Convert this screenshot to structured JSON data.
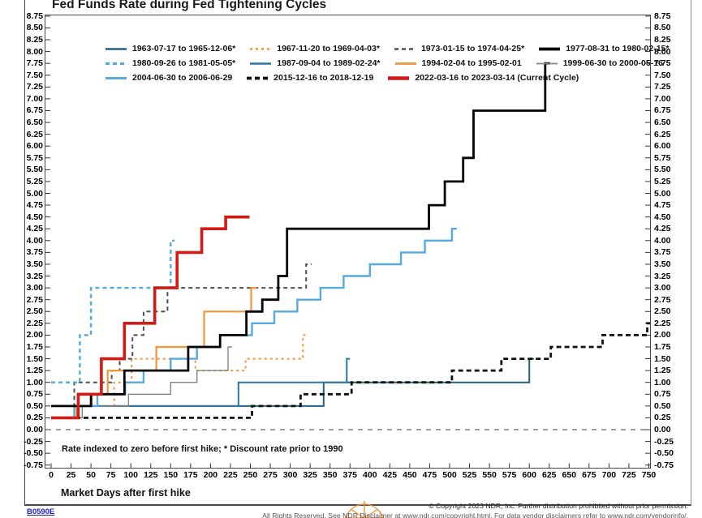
{
  "title": "Fed Funds Rate during Fed Tightening Cycles",
  "footnote": "Rate indexed to zero before first hike; * Discount rate prior to 1990",
  "x_axis": {
    "label": "Market Days after first hike",
    "ticks": [
      0,
      25,
      50,
      75,
      100,
      125,
      150,
      175,
      200,
      225,
      250,
      275,
      300,
      325,
      350,
      375,
      400,
      425,
      450,
      475,
      500,
      525,
      550,
      575,
      600,
      625,
      650,
      675,
      700,
      725,
      750
    ]
  },
  "y_axis": {
    "max": 8.75,
    "min": -0.75,
    "step": 0.25
  },
  "footer": {
    "code": "B0590E",
    "copyright": "© Copyright 2023 NDR, Inc. Further distribution prohibited without prior permission.",
    "disclaimer": "All Rights Reserved. See NDR Disclaimer at www.ndr.com/copyright.html. For data vendor disclaimers refer to www.ndr.com/vendorinfo/."
  },
  "legend_rows": [
    4,
    4,
    3
  ],
  "chart_data": {
    "type": "line",
    "title": "Fed Funds Rate during Fed Tightening Cycles",
    "xlabel": "Market Days after first hike",
    "ylabel": "Rate indexed to zero before first hike",
    "xlim": [
      0,
      752
    ],
    "ylim": [
      -0.75,
      8.75
    ],
    "grid": false,
    "legend_position": "top-left-inside",
    "zero_line": {
      "value": 0,
      "color": "#666666",
      "dash": "6 6"
    },
    "draw_order": [
      0,
      1,
      2,
      4,
      5,
      6,
      7,
      8,
      9,
      3,
      10
    ],
    "series": [
      {
        "name": "1963-07-17 to 1965-12-06*",
        "color": "#21627c",
        "width": 2,
        "dash": null,
        "steps": [
          [
            0,
            0.5
          ],
          [
            342,
            1.0
          ],
          [
            600,
            1.5
          ]
        ],
        "end_day": 606
      },
      {
        "name": "1967-11-20 to 1969-04-03*",
        "color": "#f0953a",
        "width": 2,
        "dash": "3 4",
        "steps": [
          [
            0,
            0.5
          ],
          [
            79,
            1.0
          ],
          [
            101,
            1.5
          ],
          [
            181,
            1.25
          ],
          [
            244,
            1.5
          ],
          [
            316,
            2.0
          ]
        ],
        "end_day": 321
      },
      {
        "name": "1973-01-15 to 1974-04-25*",
        "color": "#4f4f4f",
        "width": 2,
        "dash": "5 4",
        "steps": [
          [
            0,
            0.5
          ],
          [
            29,
            1.0
          ],
          [
            76,
            1.25
          ],
          [
            86,
            1.5
          ],
          [
            102,
            2.0
          ],
          [
            116,
            2.5
          ],
          [
            146,
            3.0
          ],
          [
            320,
            3.5
          ]
        ],
        "end_day": 327
      },
      {
        "name": "1977-08-31 to 1980-02-15*",
        "color": "#000000",
        "width": 2.8,
        "dash": null,
        "steps": [
          [
            0,
            0.5
          ],
          [
            50,
            0.75
          ],
          [
            92,
            1.25
          ],
          [
            172,
            1.75
          ],
          [
            212,
            2.0
          ],
          [
            245,
            2.5
          ],
          [
            265,
            2.75
          ],
          [
            285,
            3.25
          ],
          [
            296,
            4.25
          ],
          [
            474,
            4.75
          ],
          [
            494,
            5.25
          ],
          [
            517,
            5.75
          ],
          [
            530,
            6.75
          ],
          [
            620,
            7.75
          ]
        ],
        "end_day": 626
      },
      {
        "name": "1980-09-26 to 1981-05-05*",
        "color": "#53a9dd",
        "width": 2.4,
        "dash": "5 4",
        "steps": [
          [
            0,
            1.0
          ],
          [
            36,
            2.0
          ],
          [
            50,
            3.0
          ],
          [
            150,
            4.0
          ]
        ],
        "end_day": 155
      },
      {
        "name": "1987-09-04 to 1989-02-24*",
        "color": "#2c76a0",
        "width": 2,
        "dash": null,
        "steps": [
          [
            0,
            0.5
          ],
          [
            235,
            1.0
          ],
          [
            371,
            1.5
          ]
        ],
        "end_day": 375
      },
      {
        "name": "1994-02-04 to 1995-02-01",
        "color": "#f0953a",
        "width": 2.2,
        "dash": null,
        "steps": [
          [
            0,
            0.25
          ],
          [
            32,
            0.5
          ],
          [
            51,
            0.75
          ],
          [
            71,
            1.25
          ],
          [
            132,
            1.75
          ],
          [
            192,
            2.5
          ],
          [
            251,
            3.0
          ]
        ],
        "end_day": 258
      },
      {
        "name": "1999-06-30 to 2000-05-16",
        "color": "#848484",
        "width": 1.4,
        "dash": null,
        "steps": [
          [
            0,
            0.25
          ],
          [
            39,
            0.5
          ],
          [
            97,
            0.75
          ],
          [
            150,
            1.0
          ],
          [
            183,
            1.25
          ],
          [
            222,
            1.75
          ]
        ],
        "end_day": 227
      },
      {
        "name": "2004-06-30 to 2006-06-29",
        "color": "#56aadd",
        "width": 2.4,
        "dash": null,
        "steps": [
          [
            0,
            0.25
          ],
          [
            29,
            0.5
          ],
          [
            58,
            0.75
          ],
          [
            93,
            1.0
          ],
          [
            116,
            1.25
          ],
          [
            150,
            1.5
          ],
          [
            183,
            1.75
          ],
          [
            212,
            2.0
          ],
          [
            252,
            2.25
          ],
          [
            280,
            2.5
          ],
          [
            309,
            2.75
          ],
          [
            338,
            3.0
          ],
          [
            367,
            3.25
          ],
          [
            400,
            3.5
          ],
          [
            439,
            3.75
          ],
          [
            469,
            4.0
          ],
          [
            503,
            4.25
          ]
        ],
        "end_day": 509
      },
      {
        "name": "2015-12-16 to 2018-12-19",
        "color": "#111111",
        "width": 2.8,
        "dash": "6 4",
        "steps": [
          [
            0,
            0.25
          ],
          [
            252,
            0.5
          ],
          [
            313,
            0.75
          ],
          [
            377,
            1.0
          ],
          [
            503,
            1.25
          ],
          [
            565,
            1.5
          ],
          [
            627,
            1.75
          ],
          [
            692,
            2.0
          ],
          [
            748,
            2.25
          ]
        ],
        "end_day": 752
      },
      {
        "name": "2022-03-16 to 2023-03-14 (Current Cycle)",
        "color": "#d01b16",
        "width": 3.6,
        "dash": null,
        "steps": [
          [
            0,
            0.25
          ],
          [
            34,
            0.75
          ],
          [
            63,
            1.5
          ],
          [
            92,
            2.25
          ],
          [
            130,
            3.0
          ],
          [
            158,
            3.75
          ],
          [
            189,
            4.25
          ],
          [
            219,
            4.5
          ]
        ],
        "end_day": 249
      }
    ]
  }
}
